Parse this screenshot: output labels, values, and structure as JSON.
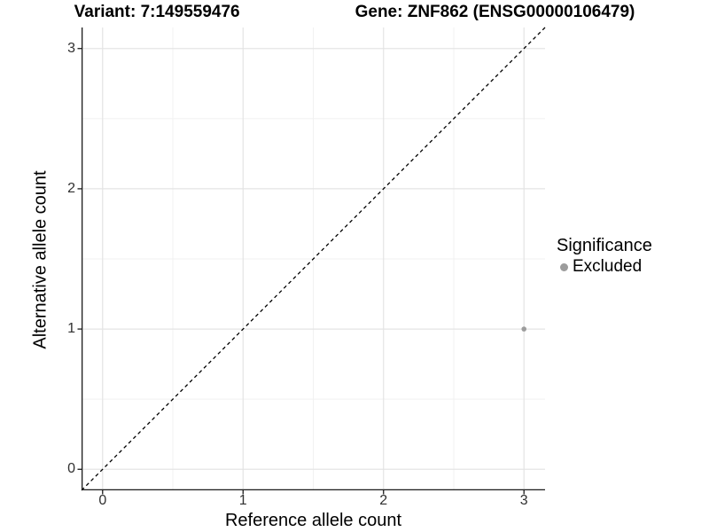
{
  "title": {
    "variant": "Variant: 7:149559476",
    "gene": "Gene: ZNF862 (ENSG00000106479)"
  },
  "axes": {
    "x": {
      "label": "Reference allele count"
    },
    "y": {
      "label": "Alternative allele count"
    }
  },
  "legend": {
    "title": "Significance",
    "items": [
      {
        "label": "Excluded",
        "color": "#9c9c9c"
      }
    ]
  },
  "colors": {
    "axis_line": "#1a1a1a",
    "tick_label": "#303030",
    "grid_major": "#e4e4e4",
    "grid_minor": "#f1f1f1",
    "background": "#ffffff"
  },
  "chart_data": {
    "type": "scatter",
    "title": "Variant: 7:149559476    Gene: ZNF862 (ENSG00000106479)",
    "xlabel": "Reference allele count",
    "ylabel": "Alternative allele count",
    "xlim": [
      -0.15,
      3.15
    ],
    "ylim": [
      -0.15,
      3.15
    ],
    "x_ticks": [
      0,
      1,
      2,
      3
    ],
    "y_ticks": [
      0,
      1,
      2,
      3
    ],
    "grid": {
      "major": true,
      "minor": true,
      "major_color": "#e4e4e4",
      "minor_color": "#f1f1f1"
    },
    "legend_position": "right",
    "legend_title": "Significance",
    "series": [
      {
        "name": "Excluded",
        "color": "#9c9c9c",
        "point_radius": 2.8,
        "points": [
          [
            3,
            1
          ]
        ]
      }
    ],
    "reference_line": {
      "slope": 1,
      "intercept": 0,
      "style": "dashed",
      "color": "#000000"
    }
  }
}
